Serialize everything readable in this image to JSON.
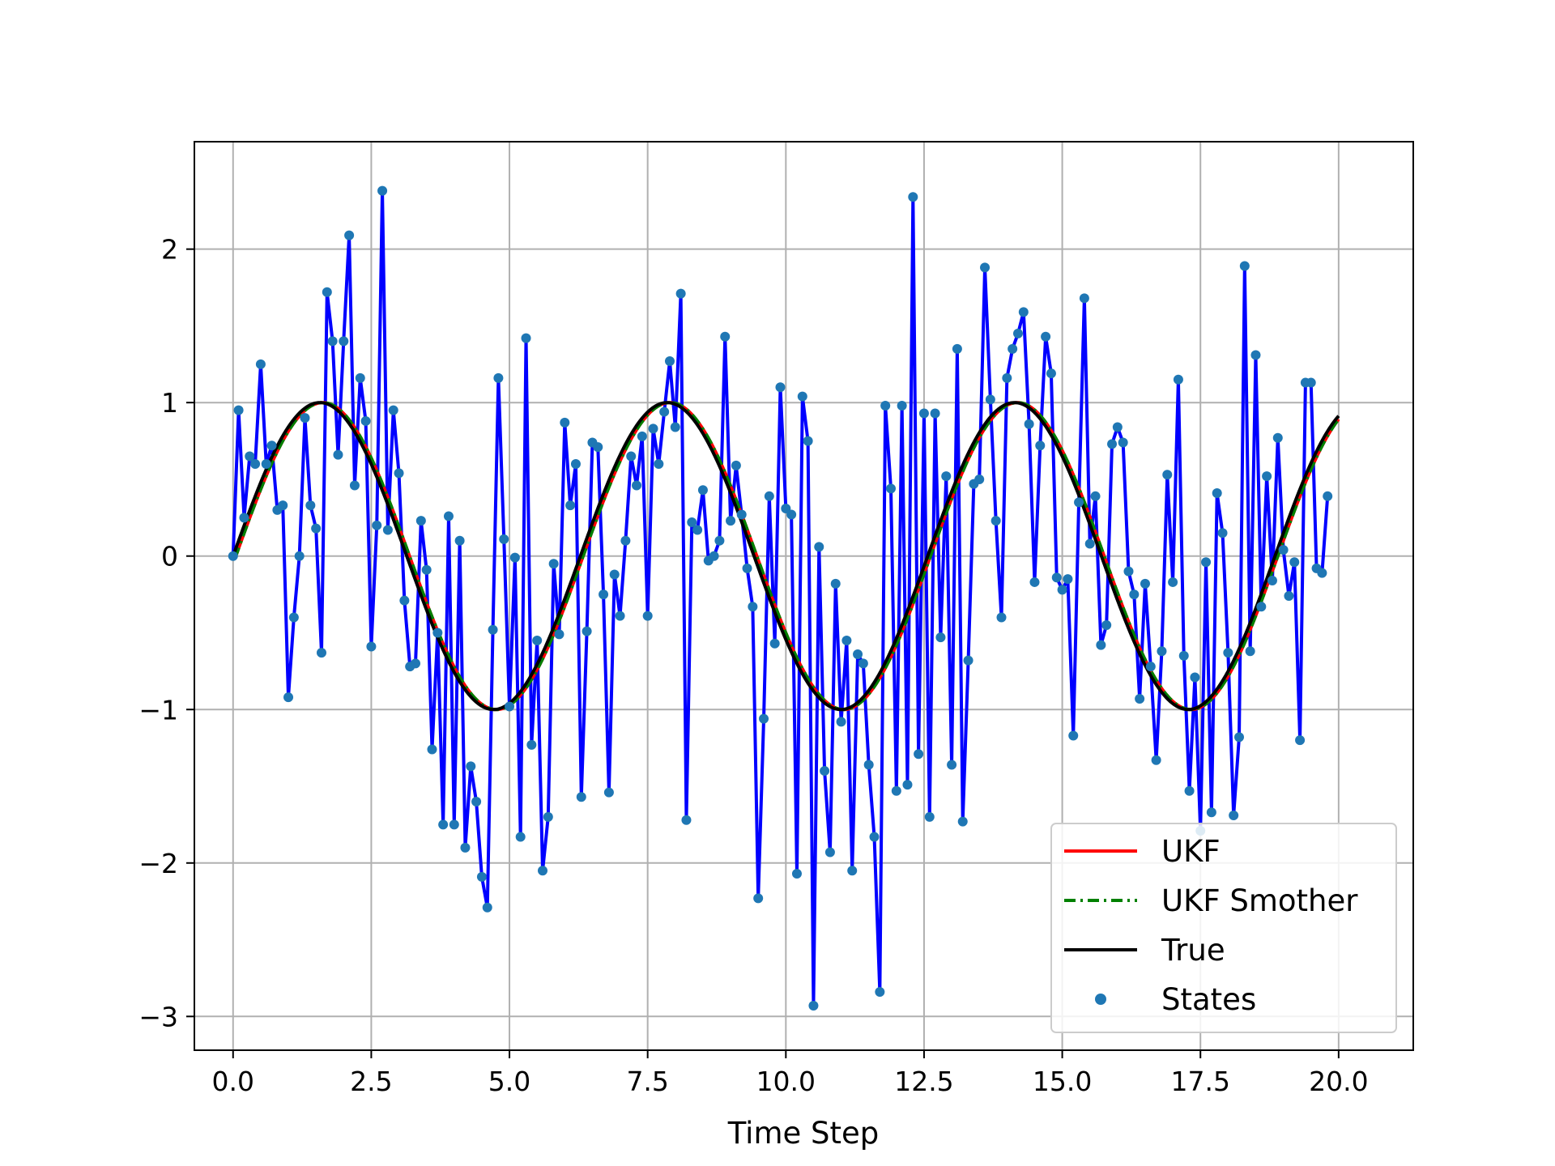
{
  "chart_data": {
    "type": "line",
    "title": "",
    "xlabel": "Time Step",
    "ylabel": "",
    "xlim": [
      -0.7,
      21.35
    ],
    "ylim": [
      -3.22,
      2.7
    ],
    "x_ticks": [
      0.0,
      2.5,
      5.0,
      7.5,
      10.0,
      12.5,
      15.0,
      17.5,
      20.0
    ],
    "x_tick_labels": [
      "0.0",
      "2.5",
      "5.0",
      "7.5",
      "10.0",
      "12.5",
      "15.0",
      "17.5",
      "20.0"
    ],
    "y_ticks": [
      -3,
      -2,
      -1,
      0,
      1,
      2
    ],
    "y_tick_labels": [
      "−3",
      "−2",
      "−1",
      "0",
      "1",
      "2"
    ],
    "grid": true,
    "legend_position": "lower-right",
    "colors": {
      "states_line": "#0000ff",
      "states_marker": "#1f77b4",
      "ukf": "#ff0000",
      "smoother": "#008000",
      "true": "#000000"
    },
    "series": [
      {
        "name": "UKF",
        "style": "solid",
        "color": "#ff0000",
        "model": "sin(x - 0.05)",
        "x_range": [
          0,
          20
        ],
        "lag": 0.05
      },
      {
        "name": "UKF Smother",
        "style": "dashdot",
        "color": "#008000",
        "model": "sin(x - 0.05)",
        "x_range": [
          0,
          20
        ],
        "lag": 0.05
      },
      {
        "name": "True",
        "style": "solid",
        "color": "#000000",
        "model": "sin(x)",
        "x_range": [
          0,
          20
        ],
        "lag": 0
      },
      {
        "name": "States",
        "style": "scatter",
        "color": "#1f77b4",
        "x_start": 0,
        "x_step": 0.1,
        "values": [
          0.0,
          0.95,
          0.25,
          0.65,
          0.6,
          1.25,
          0.6,
          0.72,
          0.3,
          0.33,
          -0.92,
          -0.4,
          0.0,
          0.9,
          0.33,
          0.18,
          -0.63,
          1.72,
          1.4,
          0.66,
          1.4,
          2.09,
          0.46,
          1.16,
          0.88,
          -0.59,
          0.2,
          2.38,
          0.17,
          0.95,
          0.54,
          -0.29,
          -0.72,
          -0.7,
          0.23,
          -0.09,
          -1.26,
          -0.5,
          -1.75,
          0.26,
          -1.75,
          0.1,
          -1.9,
          -1.37,
          -1.6,
          -2.09,
          -2.29,
          -0.48,
          1.16,
          0.11,
          -0.98,
          -0.01,
          -1.83,
          1.42,
          -1.23,
          -0.55,
          -2.05,
          -1.7,
          -0.05,
          -0.51,
          0.87,
          0.33,
          0.6,
          -1.57,
          -0.49,
          0.74,
          0.71,
          -0.25,
          -1.54,
          -0.12,
          -0.39,
          0.1,
          0.65,
          0.46,
          0.78,
          -0.39,
          0.83,
          0.6,
          0.94,
          1.27,
          0.84,
          1.71,
          -1.72,
          0.22,
          0.17,
          0.43,
          -0.03,
          0.0,
          0.1,
          1.43,
          0.23,
          0.59,
          0.27,
          -0.08,
          -0.33,
          -2.23,
          -1.06,
          0.39,
          -0.57,
          1.1,
          0.31,
          0.27,
          -2.07,
          1.04,
          0.75,
          -2.93,
          0.06,
          -1.4,
          -1.93,
          -0.18,
          -1.08,
          -0.55,
          -2.05,
          -0.64,
          -0.7,
          -1.36,
          -1.83,
          -2.84,
          0.98,
          0.44,
          -1.53,
          0.98,
          -1.49,
          2.34,
          -1.29,
          0.93,
          -1.7,
          0.93,
          -0.53,
          0.52,
          -1.36,
          1.35,
          -1.73,
          -0.68,
          0.47,
          0.5,
          1.88,
          1.02,
          0.23,
          -0.4,
          1.16,
          1.35,
          1.45,
          1.59,
          0.86,
          -0.17,
          0.72,
          1.43,
          1.19,
          -0.14,
          -0.22,
          -0.15,
          -1.17,
          0.35,
          1.68,
          0.08,
          0.39,
          -0.58,
          -0.45,
          0.73,
          0.84,
          0.74,
          -0.1,
          -0.25,
          -0.93,
          -0.18,
          -0.72,
          -1.33,
          -0.62,
          0.53,
          -0.17,
          1.15,
          -0.65,
          -1.53,
          -0.79,
          -1.79,
          -0.04,
          -1.67,
          0.41,
          0.15,
          -0.63,
          -1.69,
          -1.18,
          1.89,
          -0.62,
          1.31,
          -0.33,
          0.52,
          -0.16,
          0.77,
          0.04,
          -0.26,
          -0.04,
          -1.2,
          1.13,
          1.13,
          -0.08,
          -0.11,
          0.39
        ]
      }
    ]
  }
}
